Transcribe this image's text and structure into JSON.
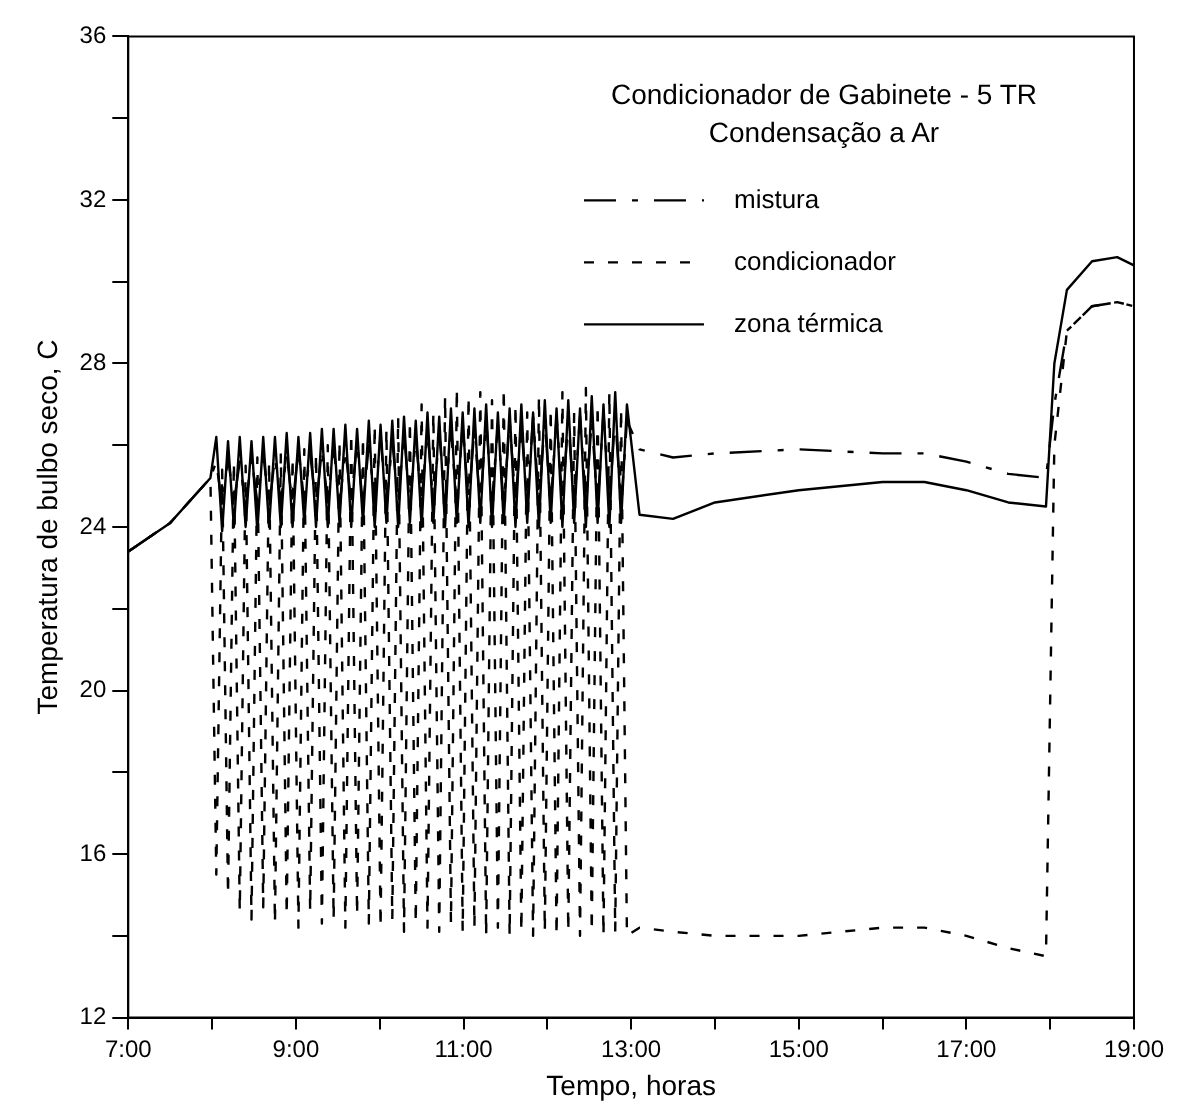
{
  "chart_data": {
    "type": "line",
    "title": "Condicionador de Gabinete - 5 TR\nCondensação a Ar",
    "xlabel": "Tempo, horas",
    "ylabel": "Temperatura de bulbo seco, C",
    "x": [
      7.0,
      7.5,
      7.98,
      8.05,
      8.12,
      8.19,
      8.26,
      8.33,
      8.4,
      8.47,
      8.54,
      8.61,
      8.68,
      8.75,
      8.82,
      8.89,
      8.96,
      9.03,
      9.1,
      9.17,
      9.24,
      9.31,
      9.38,
      9.45,
      9.52,
      9.59,
      9.66,
      9.73,
      9.8,
      9.87,
      9.94,
      10.01,
      10.08,
      10.15,
      10.22,
      10.29,
      10.36,
      10.43,
      10.5,
      10.57,
      10.64,
      10.71,
      10.78,
      10.85,
      10.92,
      10.99,
      11.06,
      11.13,
      11.2,
      11.27,
      11.34,
      11.41,
      11.48,
      11.55,
      11.62,
      11.69,
      11.76,
      11.83,
      11.9,
      11.97,
      12.04,
      12.11,
      12.18,
      12.25,
      12.32,
      12.39,
      12.46,
      12.53,
      12.6,
      12.67,
      12.74,
      12.81,
      12.88,
      12.95,
      13.1,
      13.5,
      14,
      15,
      16,
      16.5,
      17,
      17.5,
      17.95,
      18.05,
      18.2,
      18.5,
      18.8,
      19.0
    ],
    "series": [
      {
        "name": "mistura",
        "color": "#000000",
        "line_style": "dashdot",
        "values": [
          23.4,
          24.1,
          25.2,
          25.6,
          24.5,
          25.7,
          24.6,
          25.6,
          24.5,
          25.7,
          24.6,
          25.8,
          24.5,
          25.7,
          24.6,
          25.8,
          24.5,
          25.9,
          24.6,
          25.8,
          24.5,
          25.9,
          24.6,
          26.0,
          24.5,
          25.9,
          24.6,
          26.1,
          24.5,
          26.0,
          24.6,
          26.2,
          24.5,
          26.1,
          24.6,
          26.3,
          24.5,
          26.2,
          24.6,
          26.4,
          24.5,
          26.3,
          24.6,
          26.4,
          24.5,
          26.5,
          24.6,
          26.4,
          24.5,
          26.6,
          24.6,
          26.5,
          24.5,
          26.6,
          24.6,
          26.5,
          24.5,
          26.7,
          24.6,
          26.6,
          24.5,
          26.7,
          24.6,
          26.6,
          24.5,
          26.7,
          24.6,
          26.6,
          24.5,
          26.8,
          24.6,
          26.7,
          24.5,
          26.6,
          25.9,
          25.7,
          25.8,
          25.9,
          25.8,
          25.8,
          25.6,
          25.3,
          25.2,
          27.0,
          28.8,
          29.4,
          29.5,
          29.4
        ]
      },
      {
        "name": "condicionador",
        "color": "#000000",
        "line_style": "dashed",
        "values": [
          23.4,
          24.1,
          25.2,
          15.5,
          25.4,
          15.0,
          25.6,
          14.6,
          25.5,
          14.4,
          25.7,
          14.7,
          25.6,
          14.3,
          25.8,
          14.5,
          25.7,
          14.2,
          25.9,
          14.6,
          25.8,
          14.3,
          26.0,
          14.4,
          26.1,
          14.2,
          26.3,
          14.5,
          26.2,
          14.3,
          26.5,
          14.2,
          26.4,
          14.4,
          26.7,
          14.1,
          26.6,
          14.3,
          27.0,
          14.2,
          26.8,
          14.1,
          27.2,
          14.3,
          27.4,
          14.1,
          27.2,
          14.2,
          27.3,
          14.0,
          27.1,
          14.2,
          27.4,
          14.0,
          27.0,
          14.1,
          26.8,
          14.0,
          27.2,
          14.1,
          26.9,
          14.0,
          27.3,
          14.1,
          26.8,
          14.0,
          27.4,
          14.1,
          27.0,
          14.0,
          27.3,
          14.1,
          26.9,
          14.0,
          14.2,
          14.1,
          14.0,
          14.0,
          14.2,
          14.2,
          14.0,
          13.7,
          13.5,
          26.0,
          28.8,
          29.4,
          29.5,
          29.4
        ]
      },
      {
        "name": "zona térmica",
        "color": "#000000",
        "line_style": "solid",
        "values": [
          23.4,
          24.1,
          25.2,
          26.2,
          23.9,
          26.1,
          24.0,
          26.2,
          24.0,
          26.1,
          23.9,
          26.2,
          24.0,
          26.2,
          24.0,
          26.3,
          24.0,
          26.2,
          24.1,
          26.3,
          24.0,
          26.4,
          24.0,
          26.4,
          24.1,
          26.5,
          24.0,
          26.4,
          24.1,
          26.6,
          24.0,
          26.5,
          24.1,
          26.6,
          24.0,
          26.7,
          24.1,
          26.6,
          24.0,
          26.8,
          24.1,
          26.7,
          24.0,
          26.9,
          24.1,
          26.8,
          24.0,
          26.9,
          24.1,
          27.0,
          24.0,
          26.8,
          24.1,
          26.9,
          24.0,
          27.0,
          24.1,
          26.8,
          24.0,
          27.1,
          24.1,
          26.9,
          24.0,
          27.1,
          24.1,
          26.9,
          24.0,
          27.2,
          24.1,
          27.0,
          24.0,
          27.3,
          24.1,
          27.0,
          24.3,
          24.2,
          24.6,
          24.9,
          25.1,
          25.1,
          24.9,
          24.6,
          24.5,
          28.0,
          29.8,
          30.5,
          30.6,
          30.4
        ]
      }
    ],
    "xlim": [
      7,
      19
    ],
    "xticks": [
      {
        "value": 7,
        "label": "7:00"
      },
      {
        "value": 8,
        "label": null
      },
      {
        "value": 9,
        "label": "9:00"
      },
      {
        "value": 10,
        "label": null
      },
      {
        "value": 11,
        "label": "11:00"
      },
      {
        "value": 12,
        "label": null
      },
      {
        "value": 13,
        "label": "13:00"
      },
      {
        "value": 14,
        "label": null
      },
      {
        "value": 15,
        "label": "15:00"
      },
      {
        "value": 16,
        "label": null
      },
      {
        "value": 17,
        "label": "17:00"
      },
      {
        "value": 18,
        "label": null
      },
      {
        "value": 19,
        "label": "19:00"
      }
    ],
    "ylim": [
      12,
      36
    ],
    "yticks": [
      12,
      {
        "value": 14,
        "label": null
      },
      16,
      {
        "value": 18,
        "label": null
      },
      20,
      {
        "value": 22,
        "label": null
      },
      24,
      {
        "value": 26,
        "label": null
      },
      28,
      {
        "value": 30,
        "label": null
      },
      32,
      {
        "value": 34,
        "label": null
      },
      36
    ],
    "grid": false,
    "legend": "top right",
    "marker": "none"
  }
}
